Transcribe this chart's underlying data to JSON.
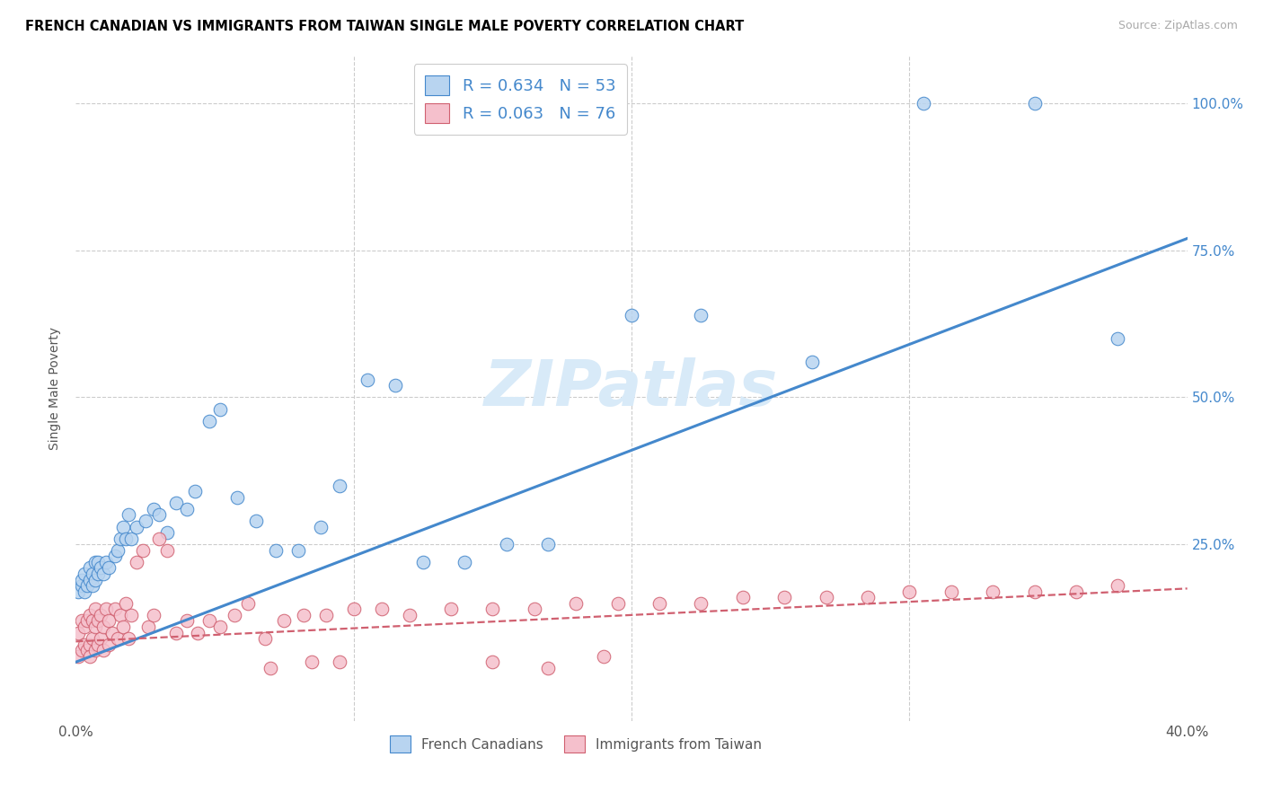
{
  "title": "FRENCH CANADIAN VS IMMIGRANTS FROM TAIWAN SINGLE MALE POVERTY CORRELATION CHART",
  "source": "Source: ZipAtlas.com",
  "ylabel": "Single Male Poverty",
  "xlim": [
    0.0,
    0.4
  ],
  "ylim": [
    -0.05,
    1.08
  ],
  "xticks": [
    0.0,
    0.1,
    0.2,
    0.3,
    0.4
  ],
  "xticklabels": [
    "0.0%",
    "",
    "",
    "",
    "40.0%"
  ],
  "yticks": [
    0.25,
    0.5,
    0.75,
    1.0
  ],
  "yticklabels": [
    "25.0%",
    "50.0%",
    "75.0%",
    "100.0%"
  ],
  "blue_R": 0.634,
  "blue_N": 53,
  "pink_R": 0.063,
  "pink_N": 76,
  "blue_color": "#b8d4f0",
  "blue_line_color": "#4488cc",
  "pink_color": "#f5c0cc",
  "pink_line_color": "#d06070",
  "watermark_text": "ZIPatlas",
  "watermark_color": "#d8eaf8",
  "legend_label_blue": "French Canadians",
  "legend_label_pink": "Immigrants from Taiwan",
  "blue_x": [
    0.001,
    0.002,
    0.002,
    0.003,
    0.003,
    0.004,
    0.005,
    0.005,
    0.006,
    0.006,
    0.007,
    0.007,
    0.008,
    0.008,
    0.009,
    0.01,
    0.011,
    0.012,
    0.014,
    0.015,
    0.016,
    0.017,
    0.018,
    0.019,
    0.02,
    0.022,
    0.025,
    0.028,
    0.03,
    0.033,
    0.036,
    0.04,
    0.043,
    0.048,
    0.052,
    0.058,
    0.065,
    0.072,
    0.08,
    0.088,
    0.095,
    0.105,
    0.115,
    0.125,
    0.14,
    0.155,
    0.17,
    0.2,
    0.225,
    0.265,
    0.305,
    0.345,
    0.375
  ],
  "blue_y": [
    0.17,
    0.18,
    0.19,
    0.17,
    0.2,
    0.18,
    0.19,
    0.21,
    0.2,
    0.18,
    0.22,
    0.19,
    0.2,
    0.22,
    0.21,
    0.2,
    0.22,
    0.21,
    0.23,
    0.24,
    0.26,
    0.28,
    0.26,
    0.3,
    0.26,
    0.28,
    0.29,
    0.31,
    0.3,
    0.27,
    0.32,
    0.31,
    0.34,
    0.46,
    0.48,
    0.33,
    0.29,
    0.24,
    0.24,
    0.28,
    0.35,
    0.53,
    0.52,
    0.22,
    0.22,
    0.25,
    0.25,
    0.64,
    0.64,
    0.56,
    1.0,
    1.0,
    0.6
  ],
  "pink_x": [
    0.001,
    0.001,
    0.002,
    0.002,
    0.003,
    0.003,
    0.004,
    0.004,
    0.005,
    0.005,
    0.005,
    0.006,
    0.006,
    0.007,
    0.007,
    0.007,
    0.008,
    0.008,
    0.009,
    0.009,
    0.01,
    0.01,
    0.011,
    0.012,
    0.012,
    0.013,
    0.014,
    0.015,
    0.016,
    0.017,
    0.018,
    0.019,
    0.02,
    0.022,
    0.024,
    0.026,
    0.028,
    0.03,
    0.033,
    0.036,
    0.04,
    0.044,
    0.048,
    0.052,
    0.057,
    0.062,
    0.068,
    0.075,
    0.082,
    0.09,
    0.1,
    0.11,
    0.12,
    0.135,
    0.15,
    0.165,
    0.18,
    0.195,
    0.21,
    0.225,
    0.24,
    0.255,
    0.27,
    0.285,
    0.3,
    0.315,
    0.33,
    0.345,
    0.36,
    0.375,
    0.15,
    0.17,
    0.19,
    0.07,
    0.085,
    0.095
  ],
  "pink_y": [
    0.06,
    0.1,
    0.07,
    0.12,
    0.08,
    0.11,
    0.07,
    0.12,
    0.08,
    0.13,
    0.06,
    0.09,
    0.12,
    0.07,
    0.11,
    0.14,
    0.08,
    0.12,
    0.09,
    0.13,
    0.07,
    0.11,
    0.14,
    0.08,
    0.12,
    0.1,
    0.14,
    0.09,
    0.13,
    0.11,
    0.15,
    0.09,
    0.13,
    0.22,
    0.24,
    0.11,
    0.13,
    0.26,
    0.24,
    0.1,
    0.12,
    0.1,
    0.12,
    0.11,
    0.13,
    0.15,
    0.09,
    0.12,
    0.13,
    0.13,
    0.14,
    0.14,
    0.13,
    0.14,
    0.14,
    0.14,
    0.15,
    0.15,
    0.15,
    0.15,
    0.16,
    0.16,
    0.16,
    0.16,
    0.17,
    0.17,
    0.17,
    0.17,
    0.17,
    0.18,
    0.05,
    0.04,
    0.06,
    0.04,
    0.05,
    0.05
  ]
}
